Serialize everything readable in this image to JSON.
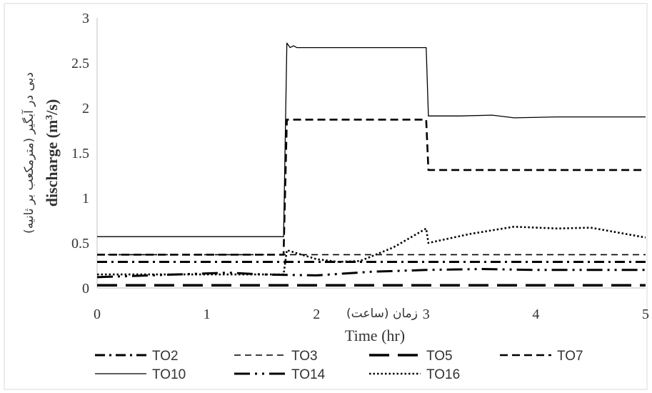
{
  "chart_data": {
    "type": "line",
    "xlabel": "Time (hr)",
    "xlabel_fa": "زمان (ساعت)",
    "ylabel_fa": "دبی در آبگیر (مترمکعب بر ثانیه)",
    "ylabel_main": "discharge (m",
    "ylabel_sup": "3",
    "ylabel_tail": "/s)",
    "xlim": [
      0,
      5
    ],
    "ylim": [
      0,
      3
    ],
    "x_ticks": [
      "0",
      "1",
      "2",
      "3",
      "4",
      "5"
    ],
    "y_ticks": [
      "0",
      "0.5",
      "1",
      "1.5",
      "2",
      "2.5",
      "3"
    ],
    "grid": false,
    "legend_position": "bottom",
    "series": [
      {
        "name": "TO2",
        "x": [
          0,
          5
        ],
        "y": [
          0.29,
          0.29
        ]
      },
      {
        "name": "TO3",
        "x": [
          0,
          1.7,
          1.71,
          5
        ],
        "y": [
          0.37,
          0.37,
          0.37,
          0.37
        ]
      },
      {
        "name": "TO5",
        "x": [
          0,
          5
        ],
        "y": [
          0.03,
          0.03
        ]
      },
      {
        "name": "TO7",
        "x": [
          0,
          1.7,
          1.73,
          3.0,
          3.02,
          5
        ],
        "y": [
          0.37,
          0.37,
          1.87,
          1.87,
          1.31,
          1.31
        ]
      },
      {
        "name": "TO10",
        "x": [
          0,
          1.7,
          1.73,
          1.76,
          1.79,
          1.82,
          3.0,
          3.02,
          3.3,
          3.6,
          3.8,
          4.2,
          5
        ],
        "y": [
          0.57,
          0.57,
          2.72,
          2.67,
          2.69,
          2.67,
          2.67,
          1.91,
          1.91,
          1.92,
          1.89,
          1.9,
          1.9
        ]
      },
      {
        "name": "TO14",
        "x": [
          0,
          1.2,
          1.5,
          2.0,
          2.5,
          3.0,
          3.5,
          4.0,
          4.5,
          5
        ],
        "y": [
          0.12,
          0.17,
          0.15,
          0.14,
          0.18,
          0.2,
          0.21,
          0.2,
          0.2,
          0.2
        ]
      },
      {
        "name": "TO16",
        "x": [
          0,
          1.7,
          1.73,
          2.0,
          2.2,
          2.4,
          2.7,
          3.0,
          3.02,
          3.4,
          3.8,
          4.2,
          4.5,
          5
        ],
        "y": [
          0.15,
          0.15,
          0.42,
          0.32,
          0.29,
          0.3,
          0.45,
          0.66,
          0.5,
          0.6,
          0.68,
          0.66,
          0.67,
          0.56
        ]
      }
    ]
  },
  "style": {
    "line_color": "#000000",
    "axis_color": "#bfbfbf",
    "text_color": "#333333"
  }
}
